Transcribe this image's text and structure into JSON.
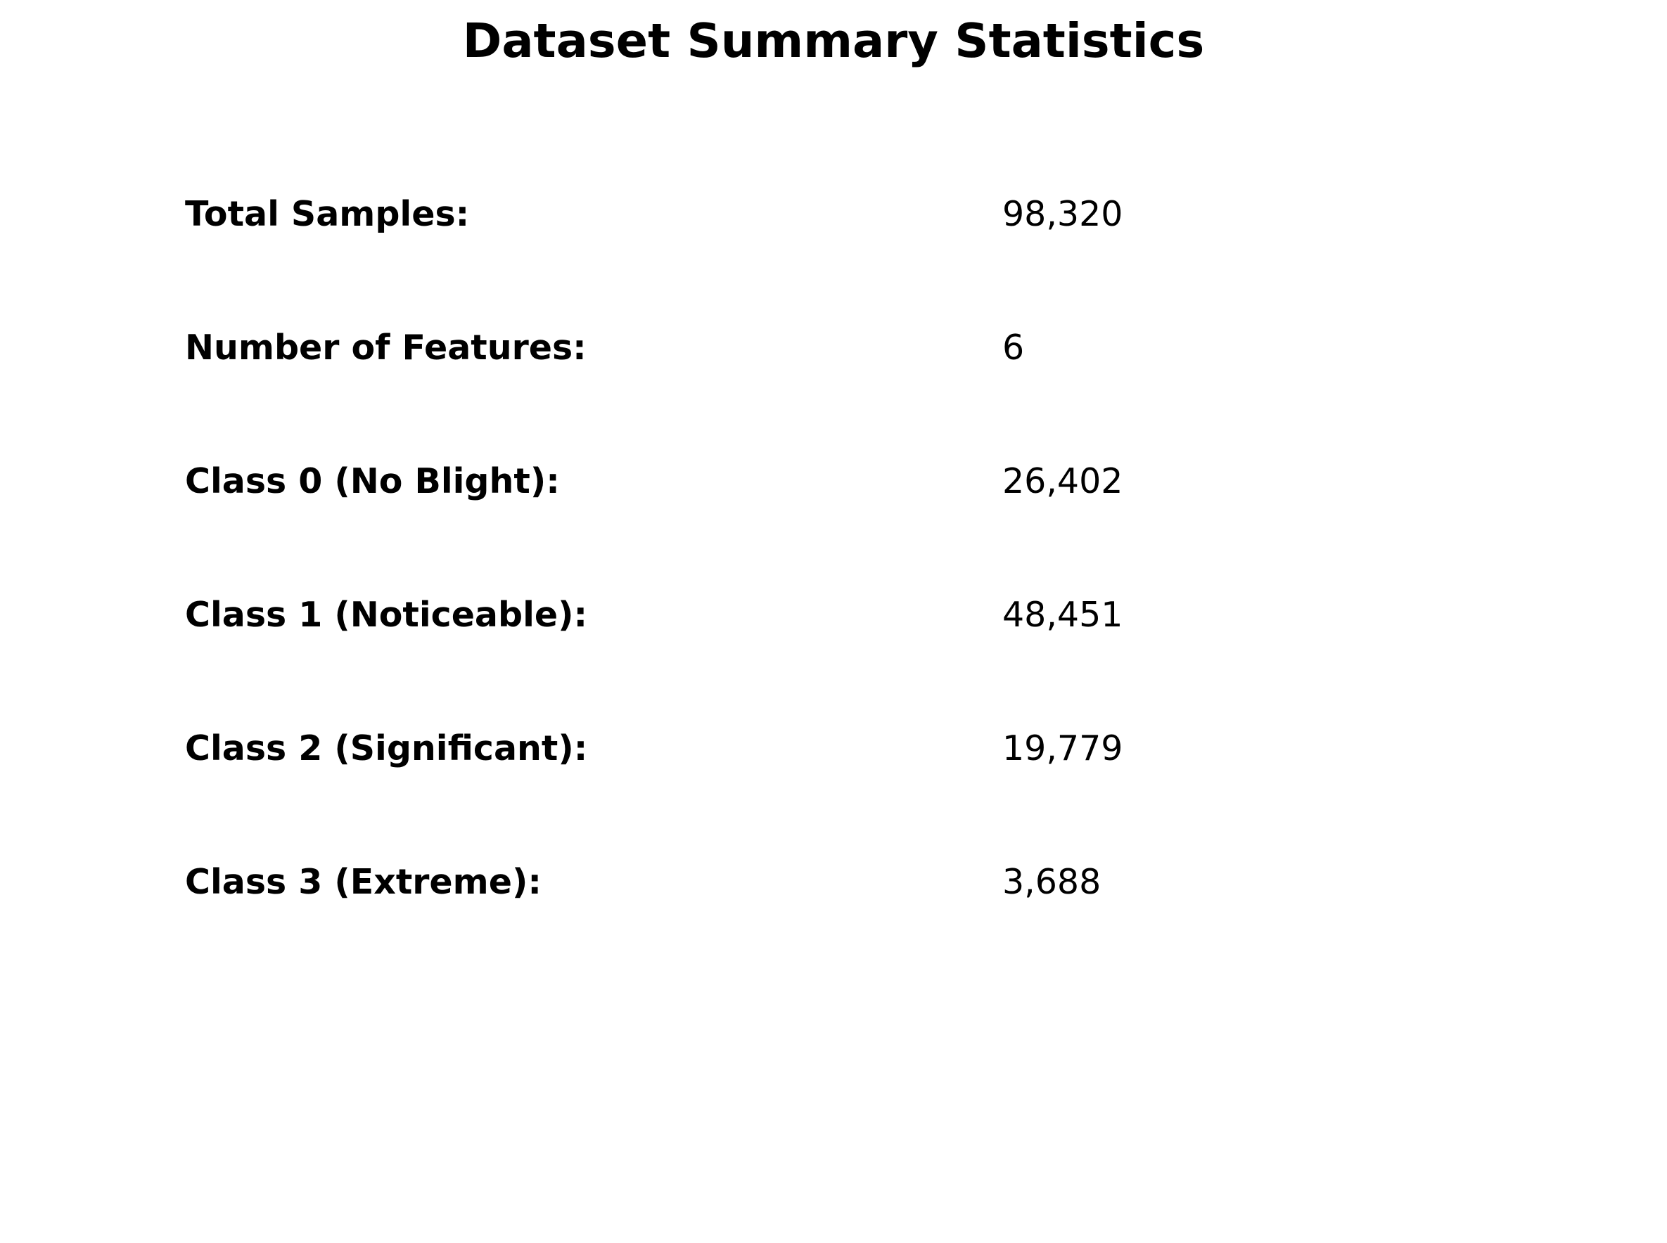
{
  "chart_data": {
    "type": "table",
    "title": "Dataset Summary Statistics",
    "rows": [
      {
        "label": "Total Samples:",
        "value": "98,320"
      },
      {
        "label": "Number of Features:",
        "value": "6"
      },
      {
        "label": "Class 0 (No Blight):",
        "value": "26,402"
      },
      {
        "label": "Class 1 (Noticeable):",
        "value": "48,451"
      },
      {
        "label": "Class 2 (Significant):",
        "value": "19,779"
      },
      {
        "label": "Class 3 (Extreme):",
        "value": "3,688"
      }
    ],
    "grid": false
  }
}
